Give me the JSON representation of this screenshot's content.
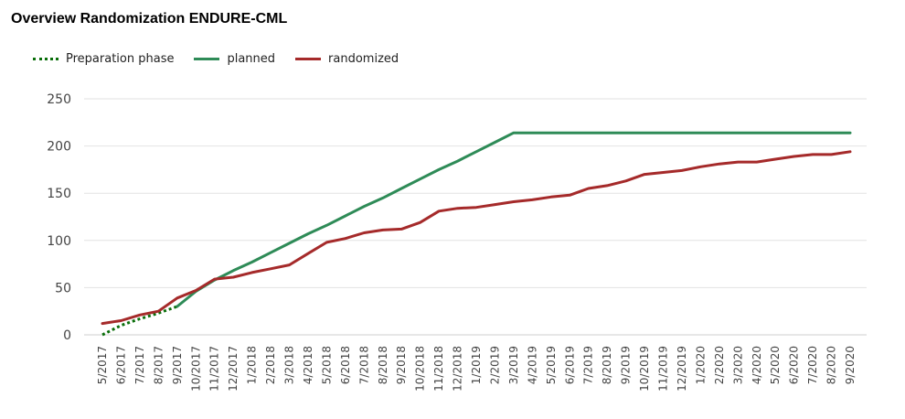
{
  "chart_data": {
    "type": "line",
    "title": "Overview Randomization ENDURE-CML",
    "xlabel": "",
    "ylabel": "",
    "ylim": [
      0,
      250
    ],
    "yticks": [
      0,
      50,
      100,
      150,
      200,
      250
    ],
    "grid": true,
    "legend_position": "top-left",
    "x": [
      "5/2017",
      "6/2017",
      "7/2017",
      "8/2017",
      "9/2017",
      "10/2017",
      "11/2017",
      "12/2017",
      "1/2018",
      "2/2018",
      "3/2018",
      "4/2018",
      "5/2018",
      "6/2018",
      "7/2018",
      "8/2018",
      "9/2018",
      "10/2018",
      "11/2018",
      "12/2018",
      "1/2019",
      "2/2019",
      "3/2019",
      "4/2019",
      "5/2019",
      "6/2019",
      "7/2019",
      "8/2019",
      "9/2019",
      "10/2019",
      "11/2019",
      "12/2019",
      "1/2020",
      "2/2020",
      "3/2020",
      "4/2020",
      "5/2020",
      "6/2020",
      "7/2020",
      "8/2020",
      "9/2020"
    ],
    "series": [
      {
        "name": "Preparation phase",
        "color": "#0a6e0a",
        "style": "dotted",
        "values": [
          0,
          10,
          17,
          23,
          30,
          null,
          null,
          null,
          null,
          null,
          null,
          null,
          null,
          null,
          null,
          null,
          null,
          null,
          null,
          null,
          null,
          null,
          null,
          null,
          null,
          null,
          null,
          null,
          null,
          null,
          null,
          null,
          null,
          null,
          null,
          null,
          null,
          null,
          null,
          null,
          null
        ]
      },
      {
        "name": "planned",
        "color": "#2e8b57",
        "style": "solid",
        "values": [
          null,
          null,
          null,
          null,
          30,
          46,
          58,
          68,
          77,
          87,
          97,
          107,
          116,
          126,
          136,
          145,
          155,
          165,
          175,
          184,
          194,
          204,
          214,
          214,
          214,
          214,
          214,
          214,
          214,
          214,
          214,
          214,
          214,
          214,
          214,
          214,
          214,
          214,
          214,
          214,
          214
        ]
      },
      {
        "name": "randomized",
        "color": "#a52a2a",
        "style": "solid",
        "values": [
          12,
          15,
          21,
          25,
          39,
          47,
          59,
          61,
          66,
          70,
          74,
          86,
          98,
          102,
          108,
          111,
          112,
          119,
          131,
          134,
          135,
          138,
          141,
          143,
          146,
          148,
          155,
          158,
          163,
          170,
          172,
          174,
          178,
          181,
          183,
          183,
          186,
          189,
          191,
          191,
          194
        ]
      }
    ]
  }
}
